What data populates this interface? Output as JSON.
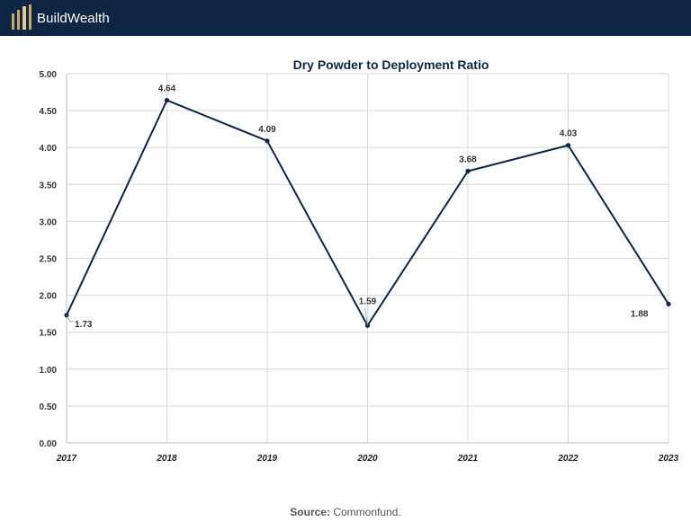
{
  "header": {
    "brand": "BuildWealth",
    "logo_icon": "bars-logo-icon",
    "logo_color": "#c9a86a",
    "bg_color": "#0e2543"
  },
  "chart_data": {
    "type": "line",
    "title": "Dry Powder to Deployment Ratio",
    "xlabel": "",
    "ylabel": "",
    "categories": [
      "2017",
      "2018",
      "2019",
      "2020",
      "2021",
      "2022",
      "2023"
    ],
    "series": [
      {
        "values": [
          1.73,
          4.64,
          4.09,
          1.59,
          3.68,
          4.03,
          1.88
        ]
      }
    ],
    "data_labels": [
      "1.73",
      "4.64",
      "4.09",
      "1.59",
      "3.68",
      "4.03",
      "1.88"
    ],
    "ylim": [
      0,
      5
    ],
    "yticks": [
      "0.00",
      "0.50",
      "1.00",
      "1.50",
      "2.00",
      "2.50",
      "3.00",
      "3.50",
      "4.00",
      "4.50",
      "5.00"
    ],
    "grid": true,
    "legend": "none",
    "line_color": "#0e2543"
  },
  "source": {
    "label": "Source:",
    "text": "Commonfund."
  }
}
